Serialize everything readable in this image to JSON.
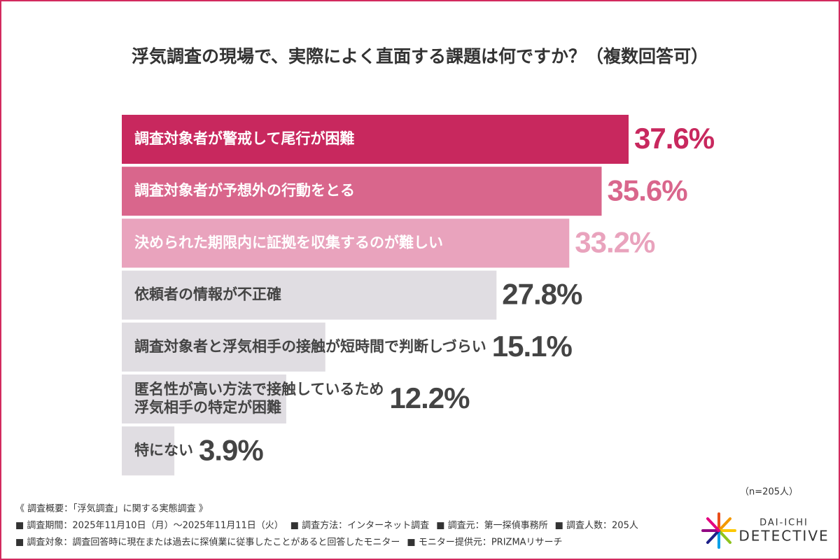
{
  "chart_data": {
    "type": "bar",
    "title": "浮気調査の現場で、実際によく直面する課題は何ですか？（複数回答可）",
    "categories": [
      "調査対象者が警戒して尾行が困難",
      "調査対象者が予想外の行動をとる",
      "決められた期限内に証拠を収集するのが難しい",
      "依頼者の情報が不正確",
      "調査対象者と浮気相手の接触が短時間で判断しづらい",
      [
        "匿名性が高い方法で接触しているため",
        "浮気相手の特定が困難"
      ],
      "特にない"
    ],
    "values": [
      37.6,
      35.6,
      33.2,
      27.8,
      15.1,
      12.2,
      3.9
    ],
    "value_labels": [
      "37.6%",
      "35.6%",
      "33.2%",
      "27.8%",
      "15.1%",
      "12.2%",
      "3.9%"
    ],
    "colors": [
      "#c8285e",
      "#d9668c",
      "#e9a3bd",
      "#e0dde2",
      "#e0dde2",
      "#e0dde2",
      "#e0dde2"
    ],
    "value_label_colors": [
      "#c8285e",
      "#d9668c",
      "#e9a3bd",
      "#444444",
      "#444444",
      "#444444",
      "#444444"
    ],
    "note": "（n=205人）",
    "footnotes": [
      [
        "《 調査概要：「浮気調査」に関する実態調査 》"
      ],
      [
        "■ 調査期間：2025年11月10日（月）～2025年11月11日（火）",
        "■ 調査方法：インターネット調査",
        "■ 調査元：第一探偵事務所",
        "■ 調査人数：205人"
      ],
      [
        "■ 調査対象：調査回答時に現在または過去に探偵業に従事したことがあると回答したモニター",
        "■ モニター提供元：PRIZMAリサーチ"
      ]
    ],
    "logo": [
      "DAI-ICHI",
      "DETECTIVE"
    ]
  }
}
